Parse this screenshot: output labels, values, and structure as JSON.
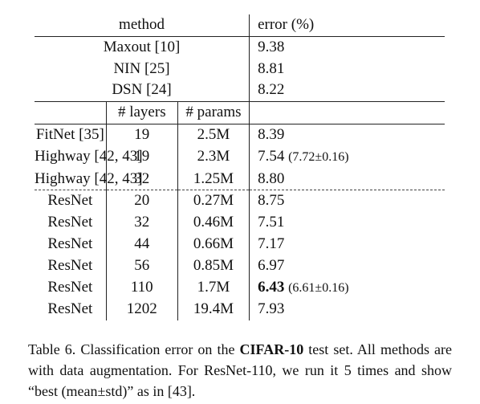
{
  "table": {
    "header": {
      "method": "method",
      "error": "error (%)",
      "layers": "# layers",
      "params": "# params"
    },
    "group1": [
      {
        "method": "Maxout [10]",
        "error": "9.38"
      },
      {
        "method": "NIN [25]",
        "error": "8.81"
      },
      {
        "method": "DSN [24]",
        "error": "8.22"
      }
    ],
    "group2": [
      {
        "method": "FitNet [35]",
        "layers": "19",
        "params": "2.5M",
        "error": "8.39",
        "extra": ""
      },
      {
        "method": "Highway [42, 43]",
        "layers": "19",
        "params": "2.3M",
        "error": "7.54",
        "extra": "(7.72±0.16)"
      },
      {
        "method": "Highway [42, 43]",
        "layers": "32",
        "params": "1.25M",
        "error": "8.80",
        "extra": ""
      }
    ],
    "group3": [
      {
        "method": "ResNet",
        "layers": "20",
        "params": "0.27M",
        "error": "8.75",
        "extra": ""
      },
      {
        "method": "ResNet",
        "layers": "32",
        "params": "0.46M",
        "error": "7.51",
        "extra": ""
      },
      {
        "method": "ResNet",
        "layers": "44",
        "params": "0.66M",
        "error": "7.17",
        "extra": ""
      },
      {
        "method": "ResNet",
        "layers": "56",
        "params": "0.85M",
        "error": "6.97",
        "extra": ""
      },
      {
        "method": "ResNet",
        "layers": "110",
        "params": "1.7M",
        "error": "6.43",
        "extra": "(6.61±0.16)"
      },
      {
        "method": "ResNet",
        "layers": "1202",
        "params": "19.4M",
        "error": "7.93",
        "extra": ""
      }
    ]
  },
  "caption": {
    "prefix": "Table 6. Classification error on the ",
    "bold": "CIFAR-10",
    "suffix": " test set. All methods are with data augmentation. For ResNet-110, we run it 5 times and show “best (mean±std)” as in [43]."
  }
}
